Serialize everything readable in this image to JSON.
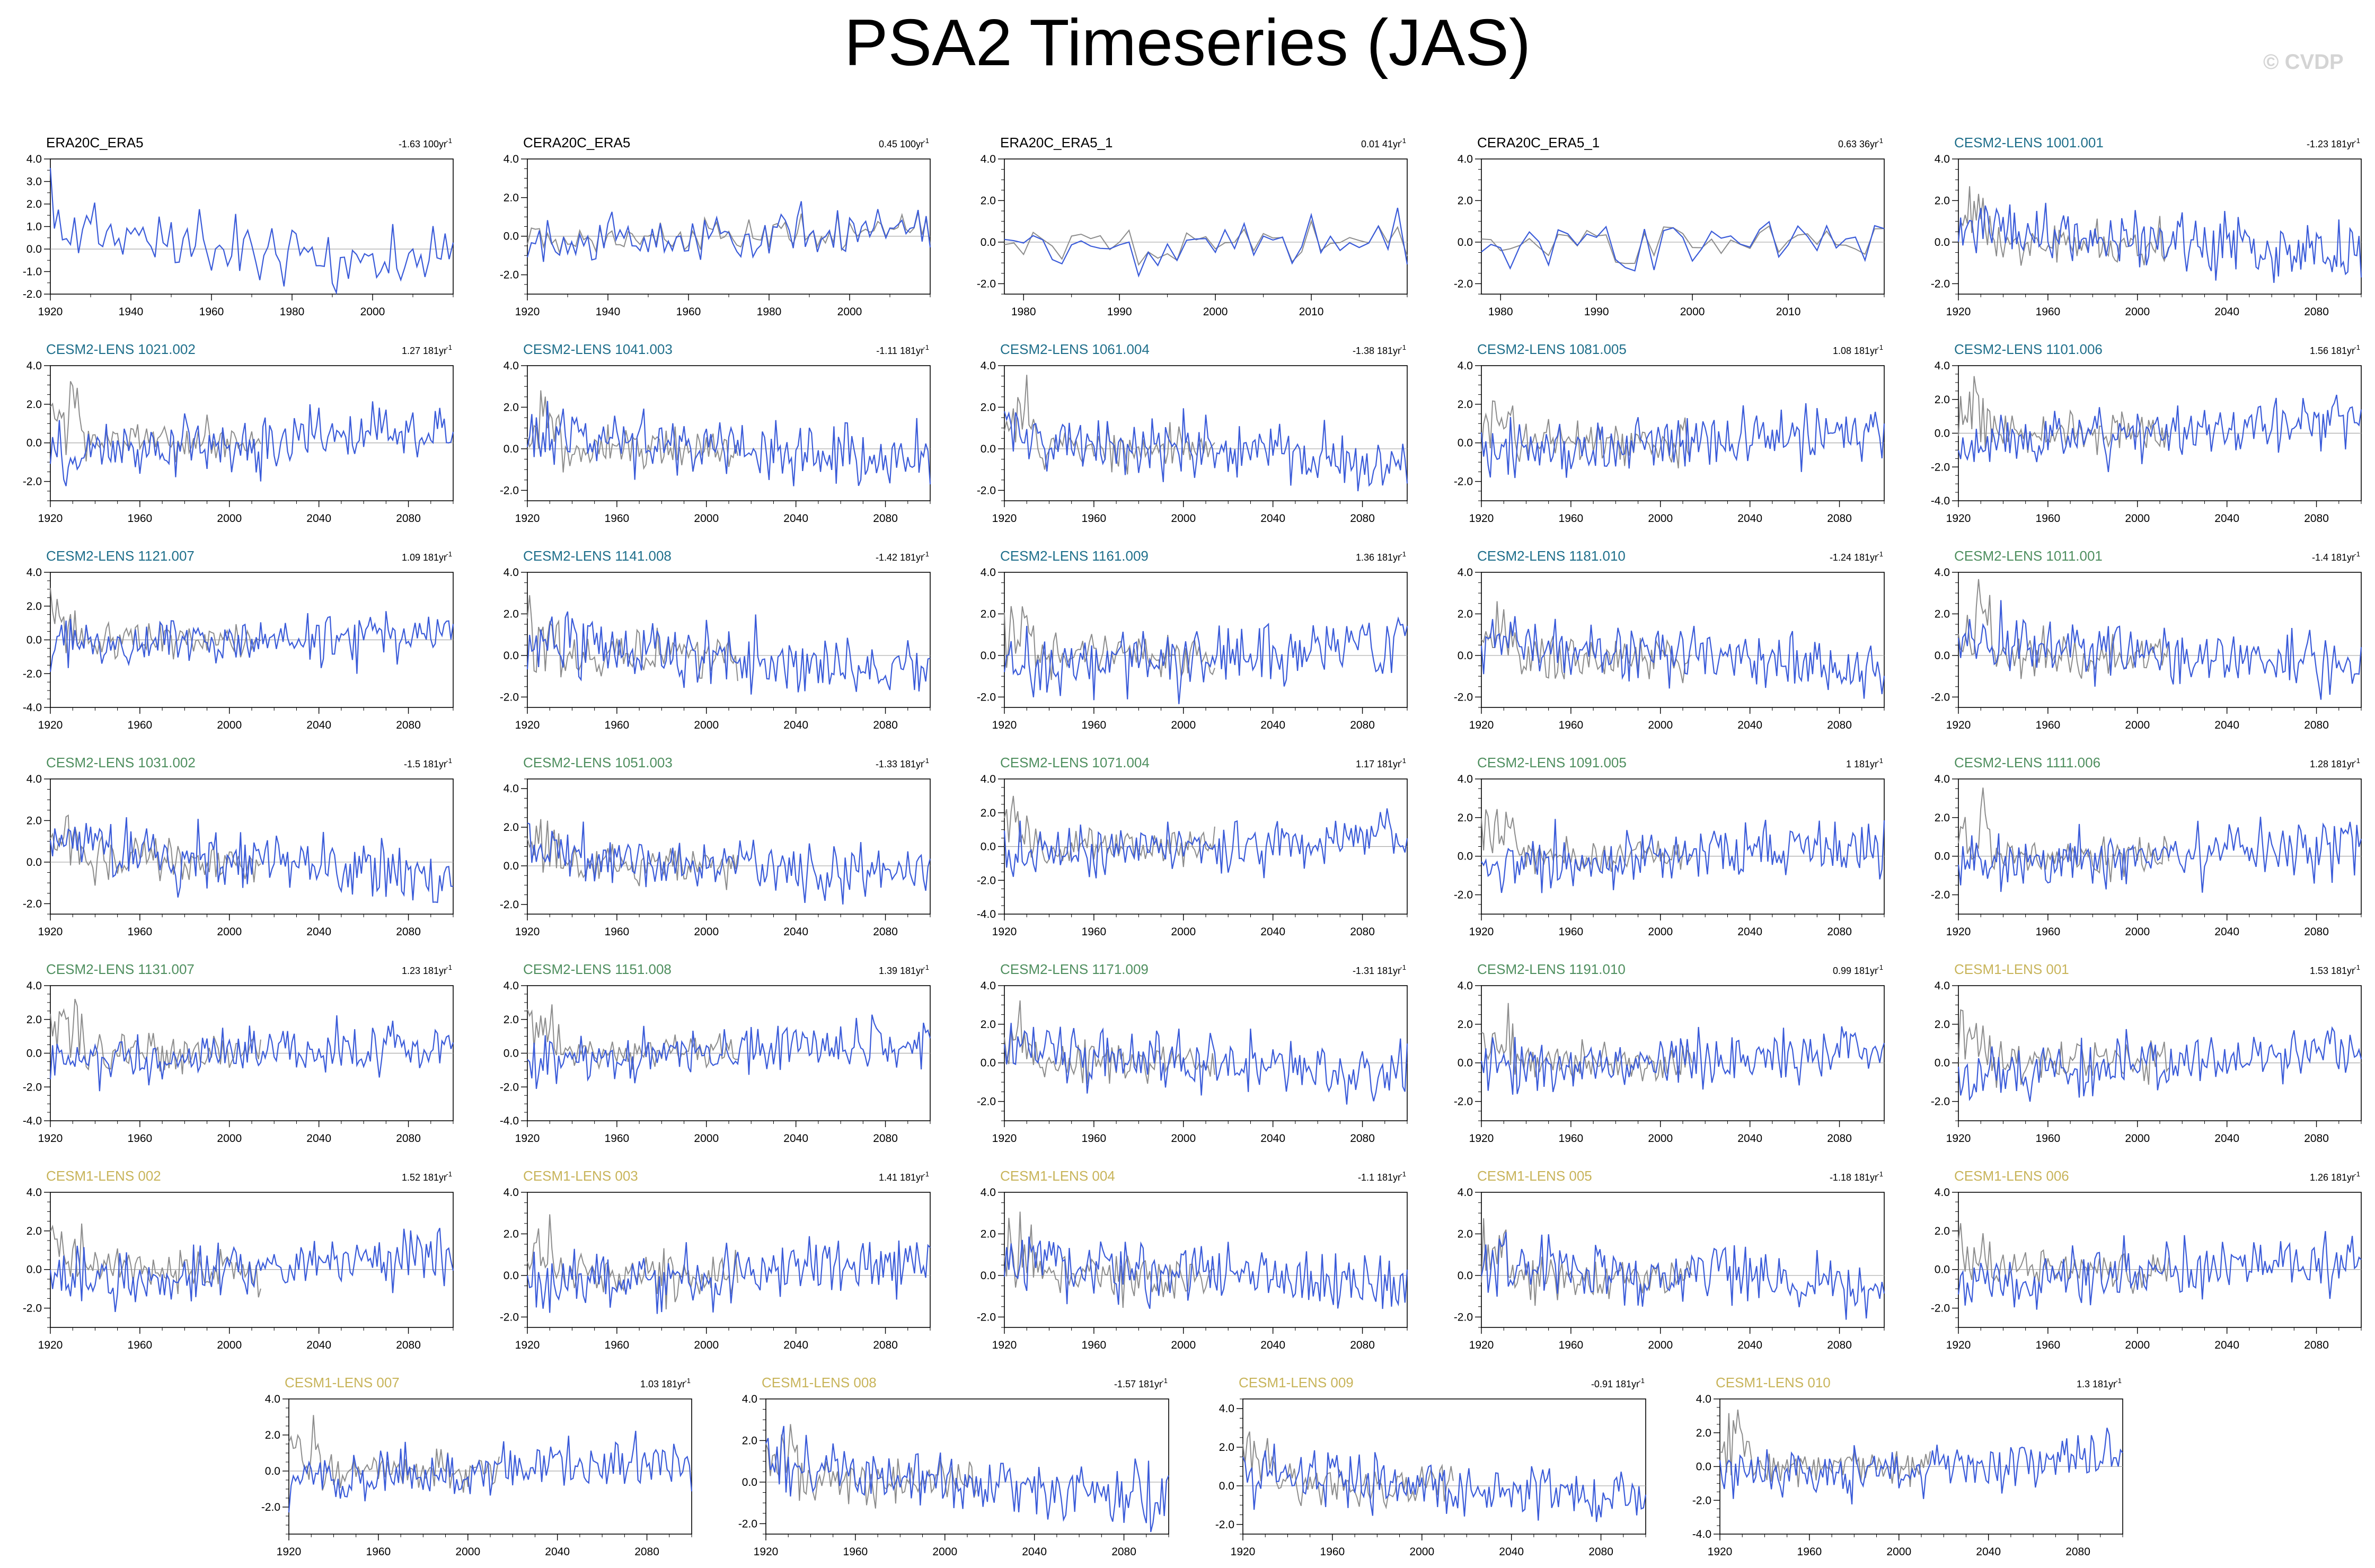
{
  "page": {
    "title": "PSA2 Timeseries (JAS)",
    "credit": "© CVDP"
  },
  "colors": {
    "obs": "#3a5bd9",
    "ref": "#8c8c8c",
    "zero": "#a6a6a6",
    "cesm2_a": "#1f6f8b",
    "cesm2_b": "#4f8f5f",
    "cesm1": "#c8b45a",
    "obs_title": "#000000"
  },
  "chart_data": [
    {
      "type": "line",
      "title": "ERA20C_ERA5",
      "trend": "-1.63 100yr",
      "trend_sup": "-1",
      "group": "obs",
      "xlim": [
        1920,
        2020
      ],
      "ylim": [
        -2,
        4
      ],
      "yticks": [
        "-2.0",
        "-1.0",
        "0.0",
        "1.0",
        "2.0",
        "3.0",
        "4.0"
      ],
      "xticks": [
        "1920",
        "1940",
        "1960",
        "1980",
        "2000"
      ],
      "series": [],
      "seed": 11
    },
    {
      "type": "line",
      "title": "CERA20C_ERA5",
      "trend": "0.45 100yr",
      "trend_sup": "-1",
      "group": "obs",
      "xlim": [
        1920,
        2020
      ],
      "ylim": [
        -3,
        4
      ],
      "yticks": [
        "-2.0",
        "0.0",
        "2.0",
        "4.0"
      ],
      "xticks": [
        "1920",
        "1940",
        "1960",
        "1980",
        "2000"
      ],
      "series": [],
      "seed": 12
    },
    {
      "type": "line",
      "title": "ERA20C_ERA5_1",
      "trend": "0.01 41yr",
      "trend_sup": "-1",
      "group": "obs",
      "xlim": [
        1978,
        2020
      ],
      "ylim": [
        -2.5,
        4
      ],
      "yticks": [
        "-2.0",
        "0.0",
        "2.0",
        "4.0"
      ],
      "xticks": [
        "1980",
        "1990",
        "2000",
        "2010"
      ],
      "series": [],
      "seed": 13
    },
    {
      "type": "line",
      "title": "CERA20C_ERA5_1",
      "trend": "0.63 36yr",
      "trend_sup": "-1",
      "group": "obs",
      "xlim": [
        1978,
        2020
      ],
      "ylim": [
        -2.5,
        4
      ],
      "yticks": [
        "-2.0",
        "0.0",
        "2.0",
        "4.0"
      ],
      "xticks": [
        "1980",
        "1990",
        "2000",
        "2010"
      ],
      "series": [],
      "seed": 14
    },
    {
      "type": "line",
      "title": "CESM2-LENS 1001.001",
      "trend": "-1.23 181yr",
      "trend_sup": "-1",
      "group": "cesm2_a",
      "xlim": [
        1920,
        2100
      ],
      "ylim": [
        -2.5,
        4
      ],
      "yticks": [
        "-2.0",
        "0.0",
        "2.0",
        "4.0"
      ],
      "xticks": [
        "1920",
        "1960",
        "2000",
        "2040",
        "2080"
      ],
      "series": [],
      "seed": 15
    },
    {
      "type": "line",
      "title": "CESM2-LENS 1021.002",
      "trend": "1.27 181yr",
      "trend_sup": "-1",
      "group": "cesm2_a",
      "xlim": [
        1920,
        2100
      ],
      "ylim": [
        -3,
        4
      ],
      "yticks": [
        "-2.0",
        "0.0",
        "2.0",
        "4.0"
      ],
      "xticks": [
        "1920",
        "1960",
        "2000",
        "2040",
        "2080"
      ],
      "series": [],
      "seed": 21
    },
    {
      "type": "line",
      "title": "CESM2-LENS 1041.003",
      "trend": "-1.11 181yr",
      "trend_sup": "-1",
      "group": "cesm2_a",
      "xlim": [
        1920,
        2100
      ],
      "ylim": [
        -2.5,
        4
      ],
      "yticks": [
        "-2.0",
        "0.0",
        "2.0",
        "4.0"
      ],
      "xticks": [
        "1920",
        "1960",
        "2000",
        "2040",
        "2080"
      ],
      "series": [],
      "seed": 22
    },
    {
      "type": "line",
      "title": "CESM2-LENS 1061.004",
      "trend": "-1.38 181yr",
      "trend_sup": "-1",
      "group": "cesm2_a",
      "xlim": [
        1920,
        2100
      ],
      "ylim": [
        -2.5,
        4
      ],
      "yticks": [
        "-2.0",
        "0.0",
        "2.0",
        "4.0"
      ],
      "xticks": [
        "1920",
        "1960",
        "2000",
        "2040",
        "2080"
      ],
      "series": [],
      "seed": 23
    },
    {
      "type": "line",
      "title": "CESM2-LENS 1081.005",
      "trend": "1.08 181yr",
      "trend_sup": "-1",
      "group": "cesm2_a",
      "xlim": [
        1920,
        2100
      ],
      "ylim": [
        -3,
        4
      ],
      "yticks": [
        "-2.0",
        "0.0",
        "2.0",
        "4.0"
      ],
      "xticks": [
        "1920",
        "1960",
        "2000",
        "2040",
        "2080"
      ],
      "series": [],
      "seed": 24
    },
    {
      "type": "line",
      "title": "CESM2-LENS 1101.006",
      "trend": "1.56 181yr",
      "trend_sup": "-1",
      "group": "cesm2_a",
      "xlim": [
        1920,
        2100
      ],
      "ylim": [
        -4,
        4
      ],
      "yticks": [
        "-4.0",
        "-2.0",
        "0.0",
        "2.0",
        "4.0"
      ],
      "xticks": [
        "1920",
        "1960",
        "2000",
        "2040",
        "2080"
      ],
      "series": [],
      "seed": 25
    },
    {
      "type": "line",
      "title": "CESM2-LENS 1121.007",
      "trend": "1.09 181yr",
      "trend_sup": "-1",
      "group": "cesm2_a",
      "xlim": [
        1920,
        2100
      ],
      "ylim": [
        -4,
        4
      ],
      "yticks": [
        "-4.0",
        "-2.0",
        "0.0",
        "2.0",
        "4.0"
      ],
      "xticks": [
        "1920",
        "1960",
        "2000",
        "2040",
        "2080"
      ],
      "series": [],
      "seed": 31
    },
    {
      "type": "line",
      "title": "CESM2-LENS 1141.008",
      "trend": "-1.42 181yr",
      "trend_sup": "-1",
      "group": "cesm2_a",
      "xlim": [
        1920,
        2100
      ],
      "ylim": [
        -2.5,
        4
      ],
      "yticks": [
        "-2.0",
        "0.0",
        "2.0",
        "4.0"
      ],
      "xticks": [
        "1920",
        "1960",
        "2000",
        "2040",
        "2080"
      ],
      "series": [],
      "seed": 32
    },
    {
      "type": "line",
      "title": "CESM2-LENS 1161.009",
      "trend": "1.36 181yr",
      "trend_sup": "-1",
      "group": "cesm2_a",
      "xlim": [
        1920,
        2100
      ],
      "ylim": [
        -2.5,
        4
      ],
      "yticks": [
        "-2.0",
        "0.0",
        "2.0",
        "4.0"
      ],
      "xticks": [
        "1920",
        "1960",
        "2000",
        "2040",
        "2080"
      ],
      "series": [],
      "seed": 33
    },
    {
      "type": "line",
      "title": "CESM2-LENS 1181.010",
      "trend": "-1.24 181yr",
      "trend_sup": "-1",
      "group": "cesm2_a",
      "xlim": [
        1920,
        2100
      ],
      "ylim": [
        -2.5,
        4
      ],
      "yticks": [
        "-2.0",
        "0.0",
        "2.0",
        "4.0"
      ],
      "xticks": [
        "1920",
        "1960",
        "2000",
        "2040",
        "2080"
      ],
      "series": [],
      "seed": 34
    },
    {
      "type": "line",
      "title": "CESM2-LENS 1011.001",
      "trend": "-1.4 181yr",
      "trend_sup": "-1",
      "group": "cesm2_b",
      "xlim": [
        1920,
        2100
      ],
      "ylim": [
        -2.5,
        4
      ],
      "yticks": [
        "-2.0",
        "0.0",
        "2.0",
        "4.0"
      ],
      "xticks": [
        "1920",
        "1960",
        "2000",
        "2040",
        "2080"
      ],
      "series": [],
      "seed": 35
    },
    {
      "type": "line",
      "title": "CESM2-LENS 1031.002",
      "trend": "-1.5 181yr",
      "trend_sup": "-1",
      "group": "cesm2_b",
      "xlim": [
        1920,
        2100
      ],
      "ylim": [
        -2.5,
        4
      ],
      "yticks": [
        "-2.0",
        "0.0",
        "2.0",
        "4.0"
      ],
      "xticks": [
        "1920",
        "1960",
        "2000",
        "2040",
        "2080"
      ],
      "series": [],
      "seed": 41
    },
    {
      "type": "line",
      "title": "CESM2-LENS 1051.003",
      "trend": "-1.33 181yr",
      "trend_sup": "-1",
      "group": "cesm2_b",
      "xlim": [
        1920,
        2100
      ],
      "ylim": [
        -2.5,
        4.5
      ],
      "yticks": [
        "-2.0",
        "0.0",
        "2.0",
        "4.0"
      ],
      "xticks": [
        "1920",
        "1960",
        "2000",
        "2040",
        "2080"
      ],
      "series": [],
      "seed": 42
    },
    {
      "type": "line",
      "title": "CESM2-LENS 1071.004",
      "trend": "1.17 181yr",
      "trend_sup": "-1",
      "group": "cesm2_b",
      "xlim": [
        1920,
        2100
      ],
      "ylim": [
        -4,
        4
      ],
      "yticks": [
        "-4.0",
        "-2.0",
        "0.0",
        "2.0",
        "4.0"
      ],
      "xticks": [
        "1920",
        "1960",
        "2000",
        "2040",
        "2080"
      ],
      "series": [],
      "seed": 43
    },
    {
      "type": "line",
      "title": "CESM2-LENS 1091.005",
      "trend": "1 181yr",
      "trend_sup": "-1",
      "group": "cesm2_b",
      "xlim": [
        1920,
        2100
      ],
      "ylim": [
        -3,
        4
      ],
      "yticks": [
        "-2.0",
        "0.0",
        "2.0",
        "4.0"
      ],
      "xticks": [
        "1920",
        "1960",
        "2000",
        "2040",
        "2080"
      ],
      "series": [],
      "seed": 44
    },
    {
      "type": "line",
      "title": "CESM2-LENS 1111.006",
      "trend": "1.28 181yr",
      "trend_sup": "-1",
      "group": "cesm2_b",
      "xlim": [
        1920,
        2100
      ],
      "ylim": [
        -3,
        4
      ],
      "yticks": [
        "-2.0",
        "0.0",
        "2.0",
        "4.0"
      ],
      "xticks": [
        "1920",
        "1960",
        "2000",
        "2040",
        "2080"
      ],
      "series": [],
      "seed": 45
    },
    {
      "type": "line",
      "title": "CESM2-LENS 1131.007",
      "trend": "1.23 181yr",
      "trend_sup": "-1",
      "group": "cesm2_b",
      "xlim": [
        1920,
        2100
      ],
      "ylim": [
        -4,
        4
      ],
      "yticks": [
        "-4.0",
        "-2.0",
        "0.0",
        "2.0",
        "4.0"
      ],
      "xticks": [
        "1920",
        "1960",
        "2000",
        "2040",
        "2080"
      ],
      "series": [],
      "seed": 51
    },
    {
      "type": "line",
      "title": "CESM2-LENS 1151.008",
      "trend": "1.39 181yr",
      "trend_sup": "-1",
      "group": "cesm2_b",
      "xlim": [
        1920,
        2100
      ],
      "ylim": [
        -4,
        4
      ],
      "yticks": [
        "-4.0",
        "-2.0",
        "0.0",
        "2.0",
        "4.0"
      ],
      "xticks": [
        "1920",
        "1960",
        "2000",
        "2040",
        "2080"
      ],
      "series": [],
      "seed": 52
    },
    {
      "type": "line",
      "title": "CESM2-LENS 1171.009",
      "trend": "-1.31 181yr",
      "trend_sup": "-1",
      "group": "cesm2_b",
      "xlim": [
        1920,
        2100
      ],
      "ylim": [
        -3,
        4
      ],
      "yticks": [
        "-2.0",
        "0.0",
        "2.0",
        "4.0"
      ],
      "xticks": [
        "1920",
        "1960",
        "2000",
        "2040",
        "2080"
      ],
      "series": [],
      "seed": 53
    },
    {
      "type": "line",
      "title": "CESM2-LENS 1191.010",
      "trend": "0.99 181yr",
      "trend_sup": "-1",
      "group": "cesm2_b",
      "xlim": [
        1920,
        2100
      ],
      "ylim": [
        -3,
        4
      ],
      "yticks": [
        "-2.0",
        "0.0",
        "2.0",
        "4.0"
      ],
      "xticks": [
        "1920",
        "1960",
        "2000",
        "2040",
        "2080"
      ],
      "series": [],
      "seed": 54
    },
    {
      "type": "line",
      "title": "CESM1-LENS 001",
      "trend": "1.53 181yr",
      "trend_sup": "-1",
      "group": "cesm1",
      "xlim": [
        1920,
        2100
      ],
      "ylim": [
        -3,
        4
      ],
      "yticks": [
        "-2.0",
        "0.0",
        "2.0",
        "4.0"
      ],
      "xticks": [
        "1920",
        "1960",
        "2000",
        "2040",
        "2080"
      ],
      "series": [],
      "seed": 55
    },
    {
      "type": "line",
      "title": "CESM1-LENS 002",
      "trend": "1.52 181yr",
      "trend_sup": "-1",
      "group": "cesm1",
      "xlim": [
        1920,
        2100
      ],
      "ylim": [
        -3,
        4
      ],
      "yticks": [
        "-2.0",
        "0.0",
        "2.0",
        "4.0"
      ],
      "xticks": [
        "1920",
        "1960",
        "2000",
        "2040",
        "2080"
      ],
      "series": [],
      "seed": 61
    },
    {
      "type": "line",
      "title": "CESM1-LENS 003",
      "trend": "1.41 181yr",
      "trend_sup": "-1",
      "group": "cesm1",
      "xlim": [
        1920,
        2100
      ],
      "ylim": [
        -2.5,
        4
      ],
      "yticks": [
        "-2.0",
        "0.0",
        "2.0",
        "4.0"
      ],
      "xticks": [
        "1920",
        "1960",
        "2000",
        "2040",
        "2080"
      ],
      "series": [],
      "seed": 62
    },
    {
      "type": "line",
      "title": "CESM1-LENS 004",
      "trend": "-1.1 181yr",
      "trend_sup": "-1",
      "group": "cesm1",
      "xlim": [
        1920,
        2100
      ],
      "ylim": [
        -2.5,
        4
      ],
      "yticks": [
        "-2.0",
        "0.0",
        "2.0",
        "4.0"
      ],
      "xticks": [
        "1920",
        "1960",
        "2000",
        "2040",
        "2080"
      ],
      "series": [],
      "seed": 63
    },
    {
      "type": "line",
      "title": "CESM1-LENS 005",
      "trend": "-1.18 181yr",
      "trend_sup": "-1",
      "group": "cesm1",
      "xlim": [
        1920,
        2100
      ],
      "ylim": [
        -2.5,
        4
      ],
      "yticks": [
        "-2.0",
        "0.0",
        "2.0",
        "4.0"
      ],
      "xticks": [
        "1920",
        "1960",
        "2000",
        "2040",
        "2080"
      ],
      "series": [],
      "seed": 64
    },
    {
      "type": "line",
      "title": "CESM1-LENS 006",
      "trend": "1.26 181yr",
      "trend_sup": "-1",
      "group": "cesm1",
      "xlim": [
        1920,
        2100
      ],
      "ylim": [
        -3,
        4
      ],
      "yticks": [
        "-2.0",
        "0.0",
        "2.0",
        "4.0"
      ],
      "xticks": [
        "1920",
        "1960",
        "2000",
        "2040",
        "2080"
      ],
      "series": [],
      "seed": 65
    },
    {
      "type": "line",
      "title": "CESM1-LENS 007",
      "trend": "1.03 181yr",
      "trend_sup": "-1",
      "group": "cesm1",
      "xlim": [
        1920,
        2100
      ],
      "ylim": [
        -3.5,
        4
      ],
      "yticks": [
        "-2.0",
        "0.0",
        "2.0",
        "4.0"
      ],
      "xticks": [
        "1920",
        "1960",
        "2000",
        "2040",
        "2080"
      ],
      "series": [],
      "seed": 71
    },
    {
      "type": "line",
      "title": "CESM1-LENS 008",
      "trend": "-1.57 181yr",
      "trend_sup": "-1",
      "group": "cesm1",
      "xlim": [
        1920,
        2100
      ],
      "ylim": [
        -2.5,
        4
      ],
      "yticks": [
        "-2.0",
        "0.0",
        "2.0",
        "4.0"
      ],
      "xticks": [
        "1920",
        "1960",
        "2000",
        "2040",
        "2080"
      ],
      "series": [],
      "seed": 72
    },
    {
      "type": "line",
      "title": "CESM1-LENS 009",
      "trend": "-0.91 181yr",
      "trend_sup": "-1",
      "group": "cesm1",
      "xlim": [
        1920,
        2100
      ],
      "ylim": [
        -2.5,
        4.5
      ],
      "yticks": [
        "-2.0",
        "0.0",
        "2.0",
        "4.0"
      ],
      "xticks": [
        "1920",
        "1960",
        "2000",
        "2040",
        "2080"
      ],
      "series": [],
      "seed": 73
    },
    {
      "type": "line",
      "title": "CESM1-LENS 010",
      "trend": "1.3 181yr",
      "trend_sup": "-1",
      "group": "cesm1",
      "xlim": [
        1920,
        2100
      ],
      "ylim": [
        -4,
        4
      ],
      "yticks": [
        "-4.0",
        "-2.0",
        "0.0",
        "2.0",
        "4.0"
      ],
      "xticks": [
        "1920",
        "1960",
        "2000",
        "2040",
        "2080"
      ],
      "series": [],
      "seed": 74
    }
  ]
}
